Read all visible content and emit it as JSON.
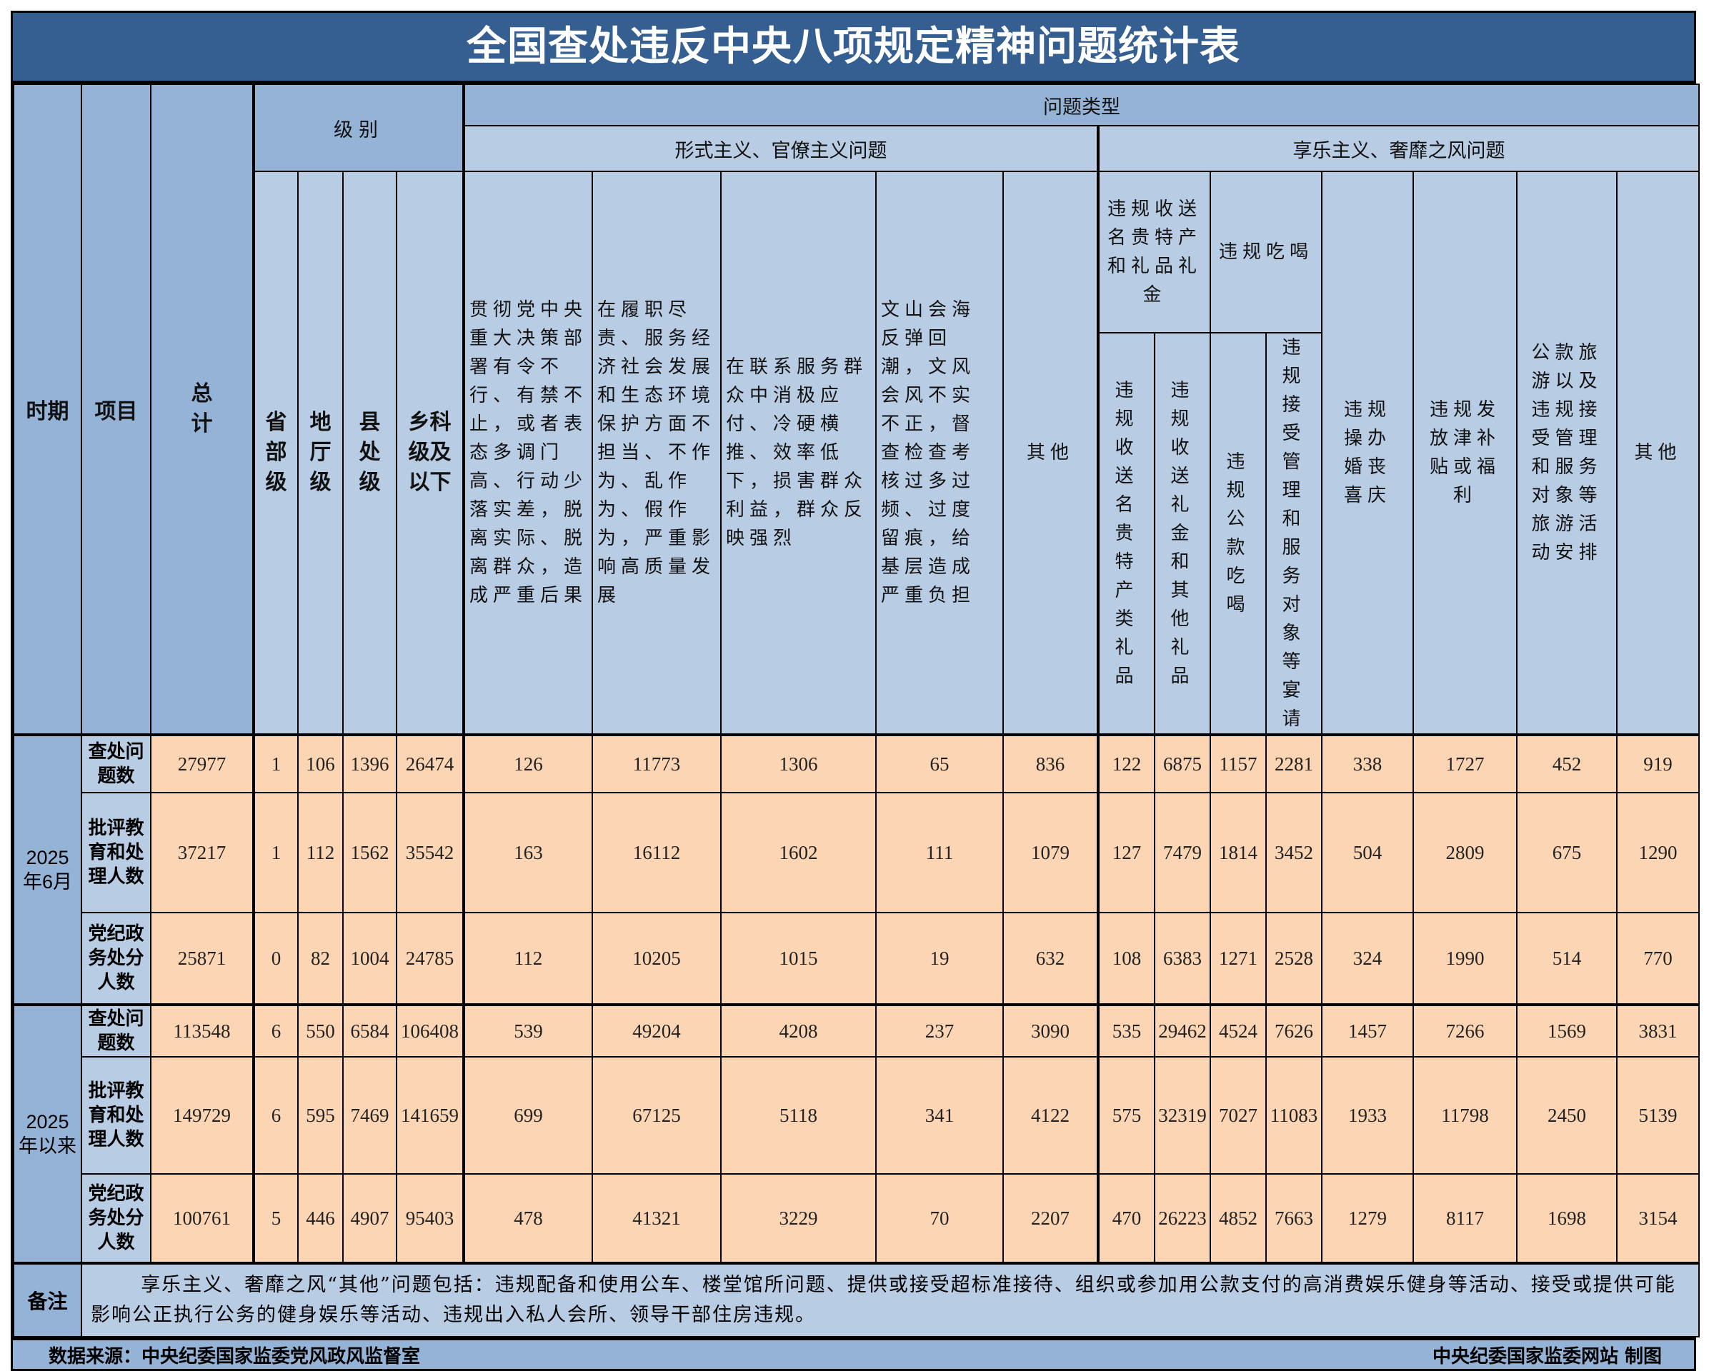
{
  "title": "全国查处违反中央八项规定精神问题统计表",
  "headers": {
    "period": "时期",
    "item": "项目",
    "total": "总计",
    "level": "级别",
    "levels": [
      "省部级",
      "地厅级",
      "县处级",
      "乡科级及以下"
    ],
    "problem_type": "问题类型",
    "formalism_group": "形式主义、官僚主义问题",
    "formalism": [
      "贯彻党中央重大决策部署有令不行、有禁不止，或者表态多调门高、行动少落实差，脱离实际、脱离群众，造成严重后果",
      "在履职尽责、服务经济社会发展和生态环境保护方面不担当、不作为、乱作为、假作为，严重影响高质量发展",
      "在联系服务群众中消极应付、冷硬横推、效率低下，损害群众利益，群众反映强烈",
      "文山会海反弹回潮，文风会风不实不正，督查检查考核过多过频、过度留痕，给基层造成严重负担",
      "其他"
    ],
    "hedonism_group": "享乐主义、奢靡之风问题",
    "gifts": "违规收送名贵特产和礼品礼金",
    "gifts_sub": [
      "违规收送名贵特产类礼品",
      "违规收送礼金和其他礼品"
    ],
    "dining": "违规吃喝",
    "dining_sub": [
      "违规公款吃喝",
      "违规接受管理和服务对象等宴请"
    ],
    "hedonism_other": [
      "违规操办婚丧喜庆",
      "违规发放津补贴或福利",
      "公款旅游以及违规接受管理和服务对象等旅游活动安排",
      "其他"
    ]
  },
  "periods": [
    {
      "label": "2025年6月",
      "rows": [
        {
          "item": "查处问题数",
          "values": [
            "27977",
            "1",
            "106",
            "1396",
            "26474",
            "126",
            "11773",
            "1306",
            "65",
            "836",
            "122",
            "6875",
            "1157",
            "2281",
            "338",
            "1727",
            "452",
            "919"
          ]
        },
        {
          "item": "批评教育和处理人数",
          "values": [
            "37217",
            "1",
            "112",
            "1562",
            "35542",
            "163",
            "16112",
            "1602",
            "111",
            "1079",
            "127",
            "7479",
            "1814",
            "3452",
            "504",
            "2809",
            "675",
            "1290"
          ]
        },
        {
          "item": "党纪政务处分人数",
          "values": [
            "25871",
            "0",
            "82",
            "1004",
            "24785",
            "112",
            "10205",
            "1015",
            "19",
            "632",
            "108",
            "6383",
            "1271",
            "2528",
            "324",
            "1990",
            "514",
            "770"
          ]
        }
      ]
    },
    {
      "label": "2025年以来",
      "rows": [
        {
          "item": "查处问题数",
          "values": [
            "113548",
            "6",
            "550",
            "6584",
            "106408",
            "539",
            "49204",
            "4208",
            "237",
            "3090",
            "535",
            "29462",
            "4524",
            "7626",
            "1457",
            "7266",
            "1569",
            "3831"
          ]
        },
        {
          "item": "批评教育和处理人数",
          "values": [
            "149729",
            "6",
            "595",
            "7469",
            "141659",
            "699",
            "67125",
            "5118",
            "341",
            "4122",
            "575",
            "32319",
            "7027",
            "11083",
            "1933",
            "11798",
            "2450",
            "5139"
          ]
        },
        {
          "item": "党纪政务处分人数",
          "values": [
            "100761",
            "5",
            "446",
            "4907",
            "95403",
            "478",
            "41321",
            "3229",
            "70",
            "2207",
            "470",
            "26223",
            "4852",
            "7663",
            "1279",
            "8117",
            "1698",
            "3154"
          ]
        }
      ]
    }
  ],
  "note": {
    "label": "备注",
    "text": "享乐主义、奢靡之风“其他”问题包括：违规配备和使用公车、楼堂馆所问题、提供或接受超标准接待、组织或参加用公款支付的高消费娱乐健身等活动、接受或提供可能影响公正执行公务的健身娱乐等活动、违规出入私人会所、领导干部住房违规。"
  },
  "footer": {
    "source": "数据来源：中央纪委国家监委党风政风监督室",
    "credit": "中央纪委国家监委网站 制图"
  },
  "colors": {
    "title_bar": "#365f91",
    "header_dark": "#95b3d7",
    "header_light": "#b8cce4",
    "data_cell": "#fcd5b4"
  }
}
